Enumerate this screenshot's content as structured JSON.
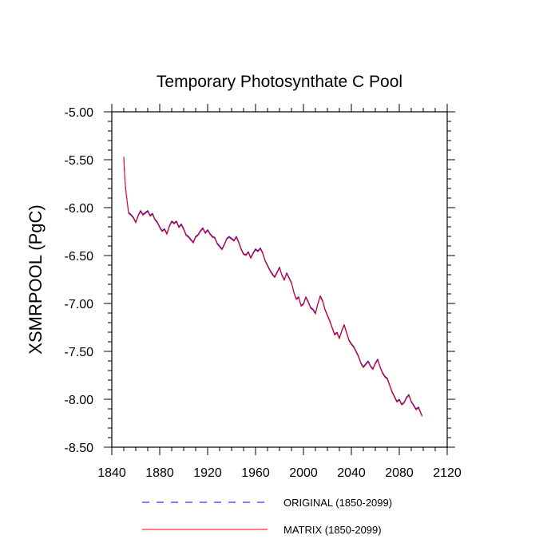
{
  "chart_data": {
    "type": "line",
    "title": "Temporary Photosynthate C Pool",
    "xlabel": "",
    "ylabel": "XSMRPOOL  (PgC)",
    "xlim": [
      1840,
      2120
    ],
    "ylim": [
      -8.5,
      -5.0
    ],
    "x_ticks": [
      1840,
      1880,
      1920,
      1960,
      2000,
      2040,
      2080,
      2120
    ],
    "x_tick_labels": [
      "1840",
      "1880",
      "1920",
      "1960",
      "2000",
      "2040",
      "2080",
      "2120"
    ],
    "y_ticks": [
      -5.0,
      -5.5,
      -6.0,
      -6.5,
      -7.0,
      -7.5,
      -8.0,
      -8.5
    ],
    "y_tick_labels": [
      "-5.00",
      "-5.50",
      "-6.00",
      "-6.50",
      "-7.00",
      "-7.50",
      "-8.00",
      "-8.50"
    ],
    "legend_position": "bottom",
    "series": [
      {
        "name": "ORIGINAL (1850-2099)",
        "color": "#0000ff",
        "style": "dashed",
        "x": [
          1850,
          1851,
          1852,
          1853,
          1854,
          1856,
          1858,
          1860,
          1862,
          1864,
          1866,
          1868,
          1870,
          1872,
          1874,
          1876,
          1878,
          1880,
          1882,
          1884,
          1886,
          1888,
          1890,
          1892,
          1894,
          1896,
          1898,
          1900,
          1902,
          1904,
          1906,
          1908,
          1910,
          1912,
          1914,
          1916,
          1918,
          1920,
          1922,
          1924,
          1926,
          1928,
          1930,
          1932,
          1934,
          1936,
          1938,
          1940,
          1942,
          1944,
          1946,
          1948,
          1950,
          1952,
          1954,
          1956,
          1958,
          1960,
          1962,
          1964,
          1966,
          1968,
          1970,
          1972,
          1974,
          1976,
          1978,
          1980,
          1982,
          1984,
          1986,
          1988,
          1990,
          1992,
          1994,
          1996,
          1998,
          2000,
          2002,
          2004,
          2006,
          2008,
          2010,
          2012,
          2014,
          2016,
          2018,
          2020,
          2022,
          2024,
          2026,
          2028,
          2030,
          2032,
          2034,
          2036,
          2038,
          2040,
          2042,
          2044,
          2046,
          2048,
          2050,
          2052,
          2054,
          2056,
          2058,
          2060,
          2062,
          2064,
          2066,
          2068,
          2070,
          2072,
          2074,
          2076,
          2078,
          2080,
          2082,
          2084,
          2086,
          2088,
          2090,
          2092,
          2094,
          2096,
          2099
        ],
        "values": [
          -5.47,
          -5.72,
          -5.85,
          -5.95,
          -6.05,
          -6.07,
          -6.1,
          -6.15,
          -6.08,
          -6.03,
          -6.07,
          -6.05,
          -6.03,
          -6.08,
          -6.06,
          -6.12,
          -6.15,
          -6.2,
          -6.24,
          -6.22,
          -6.27,
          -6.19,
          -6.14,
          -6.16,
          -6.14,
          -6.2,
          -6.17,
          -6.22,
          -6.28,
          -6.3,
          -6.33,
          -6.36,
          -6.3,
          -6.28,
          -6.24,
          -6.21,
          -6.26,
          -6.23,
          -6.27,
          -6.3,
          -6.31,
          -6.37,
          -6.4,
          -6.43,
          -6.38,
          -6.32,
          -6.3,
          -6.32,
          -6.34,
          -6.3,
          -6.36,
          -6.43,
          -6.48,
          -6.49,
          -6.46,
          -6.52,
          -6.47,
          -6.43,
          -6.45,
          -6.42,
          -6.47,
          -6.55,
          -6.6,
          -6.65,
          -6.69,
          -6.72,
          -6.67,
          -6.62,
          -6.7,
          -6.75,
          -6.68,
          -6.73,
          -6.78,
          -6.88,
          -6.95,
          -6.93,
          -7.02,
          -7.0,
          -6.93,
          -6.98,
          -7.04,
          -7.06,
          -7.1,
          -7.0,
          -6.92,
          -6.97,
          -7.06,
          -7.12,
          -7.18,
          -7.25,
          -7.32,
          -7.3,
          -7.36,
          -7.28,
          -7.22,
          -7.3,
          -7.38,
          -7.42,
          -7.45,
          -7.5,
          -7.55,
          -7.62,
          -7.66,
          -7.63,
          -7.6,
          -7.65,
          -7.68,
          -7.62,
          -7.58,
          -7.66,
          -7.72,
          -7.76,
          -7.78,
          -7.85,
          -7.92,
          -7.97,
          -8.02,
          -8.0,
          -8.05,
          -8.03,
          -7.98,
          -7.95,
          -8.02,
          -8.06,
          -8.1,
          -8.08,
          -8.17
        ]
      },
      {
        "name": "MATRIX (1850-2099)",
        "color": "#ff0000",
        "style": "solid",
        "x": [
          1850,
          1851,
          1852,
          1853,
          1854,
          1856,
          1858,
          1860,
          1862,
          1864,
          1866,
          1868,
          1870,
          1872,
          1874,
          1876,
          1878,
          1880,
          1882,
          1884,
          1886,
          1888,
          1890,
          1892,
          1894,
          1896,
          1898,
          1900,
          1902,
          1904,
          1906,
          1908,
          1910,
          1912,
          1914,
          1916,
          1918,
          1920,
          1922,
          1924,
          1926,
          1928,
          1930,
          1932,
          1934,
          1936,
          1938,
          1940,
          1942,
          1944,
          1946,
          1948,
          1950,
          1952,
          1954,
          1956,
          1958,
          1960,
          1962,
          1964,
          1966,
          1968,
          1970,
          1972,
          1974,
          1976,
          1978,
          1980,
          1982,
          1984,
          1986,
          1988,
          1990,
          1992,
          1994,
          1996,
          1998,
          2000,
          2002,
          2004,
          2006,
          2008,
          2010,
          2012,
          2014,
          2016,
          2018,
          2020,
          2022,
          2024,
          2026,
          2028,
          2030,
          2032,
          2034,
          2036,
          2038,
          2040,
          2042,
          2044,
          2046,
          2048,
          2050,
          2052,
          2054,
          2056,
          2058,
          2060,
          2062,
          2064,
          2066,
          2068,
          2070,
          2072,
          2074,
          2076,
          2078,
          2080,
          2082,
          2084,
          2086,
          2088,
          2090,
          2092,
          2094,
          2096,
          2099
        ],
        "values": [
          -5.48,
          -5.73,
          -5.86,
          -5.96,
          -6.06,
          -6.08,
          -6.11,
          -6.16,
          -6.09,
          -6.04,
          -6.08,
          -6.06,
          -6.04,
          -6.09,
          -6.07,
          -6.13,
          -6.16,
          -6.21,
          -6.25,
          -6.23,
          -6.28,
          -6.2,
          -6.15,
          -6.17,
          -6.15,
          -6.21,
          -6.18,
          -6.23,
          -6.29,
          -6.31,
          -6.34,
          -6.37,
          -6.31,
          -6.29,
          -6.25,
          -6.22,
          -6.27,
          -6.24,
          -6.28,
          -6.31,
          -6.32,
          -6.38,
          -6.41,
          -6.44,
          -6.39,
          -6.33,
          -6.31,
          -6.33,
          -6.35,
          -6.31,
          -6.37,
          -6.44,
          -6.49,
          -6.5,
          -6.47,
          -6.53,
          -6.48,
          -6.44,
          -6.46,
          -6.43,
          -6.48,
          -6.56,
          -6.61,
          -6.66,
          -6.7,
          -6.73,
          -6.68,
          -6.63,
          -6.71,
          -6.76,
          -6.69,
          -6.74,
          -6.79,
          -6.89,
          -6.96,
          -6.94,
          -7.03,
          -7.01,
          -6.94,
          -6.99,
          -7.05,
          -7.07,
          -7.11,
          -7.01,
          -6.93,
          -6.98,
          -7.07,
          -7.13,
          -7.19,
          -7.26,
          -7.33,
          -7.31,
          -7.37,
          -7.29,
          -7.23,
          -7.31,
          -7.39,
          -7.43,
          -7.46,
          -7.51,
          -7.56,
          -7.63,
          -7.67,
          -7.64,
          -7.61,
          -7.66,
          -7.69,
          -7.63,
          -7.59,
          -7.67,
          -7.73,
          -7.77,
          -7.79,
          -7.86,
          -7.93,
          -7.98,
          -8.03,
          -8.01,
          -8.06,
          -8.04,
          -7.99,
          -7.96,
          -8.03,
          -8.07,
          -8.11,
          -8.09,
          -8.18
        ]
      }
    ]
  }
}
